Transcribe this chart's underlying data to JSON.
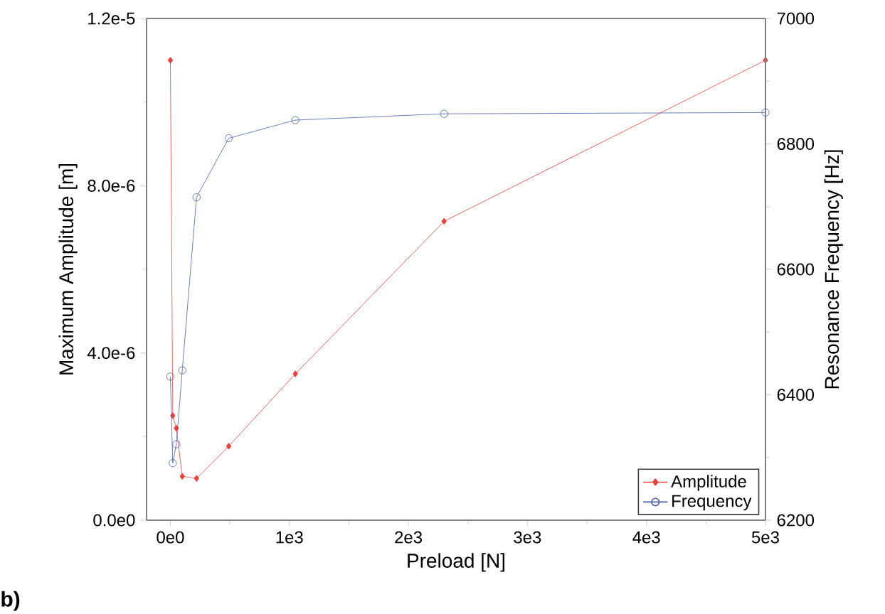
{
  "chart_data": {
    "type": "line",
    "xlabel": "Preload [N]",
    "ylabel": "Maximum Amplitude [m]",
    "y2label": "Resonance Frequency [Hz]",
    "xlim": [
      -200,
      5000
    ],
    "xticks": [
      {
        "value": 0,
        "label": "0e0"
      },
      {
        "value": 1000,
        "label": "1e3"
      },
      {
        "value": 2000,
        "label": "2e3"
      },
      {
        "value": 3000,
        "label": "3e3"
      },
      {
        "value": 4000,
        "label": "4e3"
      },
      {
        "value": 5000,
        "label": "5e3"
      }
    ],
    "ylim": [
      0,
      1.2e-05
    ],
    "yticks": [
      {
        "value": 0,
        "label": "0.0e0"
      },
      {
        "value": 4e-06,
        "label": "4.0e-6"
      },
      {
        "value": 8e-06,
        "label": "8.0e-6"
      },
      {
        "value": 1.2e-05,
        "label": "1.2e-5"
      }
    ],
    "y2lim": [
      6200,
      7000
    ],
    "y2ticks": [
      6200,
      6400,
      6600,
      6800,
      7000
    ],
    "series": [
      {
        "name": "Amplitude",
        "color": "#e8413c",
        "marker": "diamond",
        "x": [
          0,
          20,
          50,
          100,
          220,
          490,
          1050,
          2300,
          5000
        ],
        "values": [
          1.1e-05,
          2.5e-06,
          2.2e-06,
          1.05e-06,
          1e-06,
          1.77e-06,
          3.5e-06,
          7.15e-06,
          1.1e-05
        ]
      },
      {
        "name": "Frequency",
        "color": "#4a5fa8",
        "marker": "circle",
        "axis": "y2",
        "x": [
          0,
          20,
          50,
          100,
          220,
          490,
          1050,
          2300,
          5000
        ],
        "values": [
          6429,
          6291,
          6321,
          6439,
          6715,
          6809,
          6838,
          6848,
          6850
        ]
      }
    ],
    "legend": "bottom right",
    "grid": false,
    "annotations": [
      "b)"
    ]
  }
}
